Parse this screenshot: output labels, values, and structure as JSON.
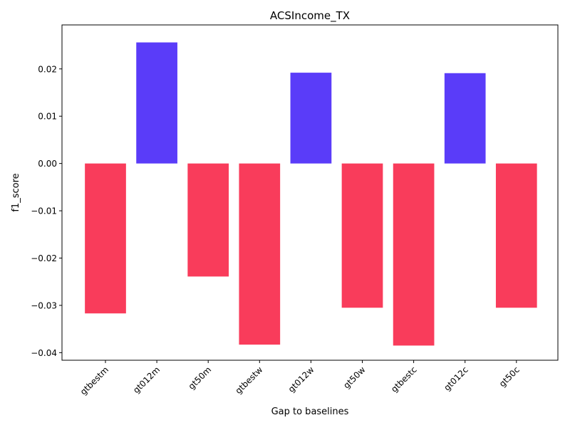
{
  "chart_data": {
    "type": "bar",
    "title": "ACSIncome_TX",
    "xlabel": "Gap to baselines",
    "ylabel": "f1_score",
    "categories": [
      "gtbestm",
      "gt012m",
      "gt50m",
      "gtbestw",
      "gt012w",
      "gt50w",
      "gtbestc",
      "gt012c",
      "gt50c"
    ],
    "values": [
      -0.0317,
      0.0256,
      -0.0239,
      -0.0383,
      0.0192,
      -0.0305,
      -0.0385,
      0.0191,
      -0.0305
    ],
    "ylim": [
      -0.0416,
      0.0293
    ],
    "yticks": [
      -0.04,
      -0.03,
      -0.02,
      -0.01,
      0.0,
      0.01,
      0.02
    ],
    "ytick_labels": [
      "−0.04",
      "−0.03",
      "−0.02",
      "−0.01",
      "0.00",
      "0.01",
      "0.02"
    ],
    "grid": false,
    "legend": "none",
    "colors": {
      "positive": "#5a3cf9",
      "negative": "#f93c5b"
    }
  }
}
